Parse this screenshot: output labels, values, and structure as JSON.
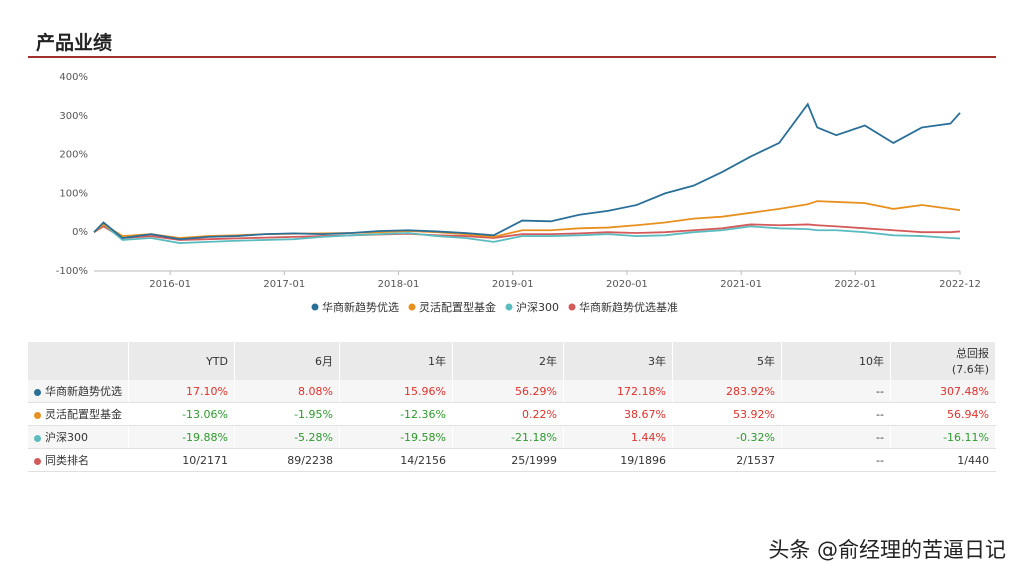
{
  "header": {
    "title": "产品业绩"
  },
  "chart_data": {
    "type": "line",
    "x": [
      "2015-05",
      "2015-06",
      "2015-08",
      "2015-11",
      "2016-02",
      "2016-05",
      "2016-08",
      "2016-11",
      "2017-02",
      "2017-05",
      "2017-08",
      "2017-11",
      "2018-02",
      "2018-05",
      "2018-08",
      "2018-11",
      "2019-02",
      "2019-05",
      "2019-08",
      "2019-11",
      "2020-02",
      "2020-05",
      "2020-08",
      "2020-11",
      "2021-02",
      "2021-05",
      "2021-08",
      "2021-09",
      "2021-11",
      "2022-02",
      "2022-05",
      "2022-08",
      "2022-11",
      "2022-12"
    ],
    "xlim": [
      "2015-05",
      "2022-12"
    ],
    "xticks": [
      "2016-01",
      "2017-01",
      "2018-01",
      "2019-01",
      "2020-01",
      "2021-01",
      "2022-01",
      "2022-12"
    ],
    "ylim": [
      -100,
      400
    ],
    "yticks": [
      {
        "value": -100,
        "label": "-100%"
      },
      {
        "value": 0,
        "label": "0%"
      },
      {
        "value": 100,
        "label": "100%"
      },
      {
        "value": 200,
        "label": "200%"
      },
      {
        "value": 300,
        "label": "300%"
      },
      {
        "value": 400,
        "label": "400%"
      }
    ],
    "series": [
      {
        "name": "华商新趋势优选",
        "color": "#2a6f97",
        "values": [
          0,
          25,
          -15,
          -5,
          -18,
          -12,
          -10,
          -5,
          -3,
          -5,
          -2,
          3,
          5,
          2,
          -2,
          -8,
          30,
          28,
          45,
          55,
          70,
          100,
          120,
          155,
          195,
          230,
          330,
          270,
          250,
          275,
          230,
          270,
          280,
          307.48
        ]
      },
      {
        "name": "灵活配置型基金",
        "color": "#e8901f",
        "values": [
          0,
          20,
          -10,
          -5,
          -15,
          -10,
          -8,
          -5,
          -4,
          -3,
          -2,
          0,
          3,
          0,
          -5,
          -12,
          5,
          5,
          10,
          12,
          18,
          25,
          35,
          40,
          50,
          60,
          72,
          80,
          78,
          75,
          60,
          70,
          60,
          56.94
        ]
      },
      {
        "name": "沪深300",
        "color": "#5bbcc0",
        "values": [
          0,
          20,
          -20,
          -15,
          -28,
          -25,
          -22,
          -20,
          -18,
          -12,
          -8,
          -5,
          -2,
          -10,
          -15,
          -25,
          -10,
          -10,
          -8,
          -5,
          -10,
          -8,
          0,
          5,
          15,
          10,
          8,
          5,
          5,
          0,
          -8,
          -10,
          -15,
          -16.11
        ]
      },
      {
        "name": "华商新趋势优选基准",
        "color": "#d45a5a",
        "values": [
          0,
          15,
          -15,
          -10,
          -20,
          -18,
          -16,
          -14,
          -12,
          -10,
          -8,
          -6,
          -4,
          -8,
          -10,
          -15,
          -5,
          -5,
          -3,
          0,
          -2,
          0,
          5,
          10,
          20,
          18,
          20,
          18,
          15,
          10,
          5,
          0,
          0,
          2
        ]
      }
    ]
  },
  "table": {
    "columns": [
      "YTD",
      "6月",
      "1年",
      "2年",
      "3年",
      "5年",
      "10年",
      [
        "总回报",
        "(7.6年)"
      ]
    ],
    "rows": [
      {
        "label": "华商新趋势优选",
        "color": "#2a6f97",
        "cells": [
          "17.10%",
          "8.08%",
          "15.96%",
          "56.29%",
          "172.18%",
          "283.92%",
          "--",
          "307.48%"
        ]
      },
      {
        "label": "灵活配置型基金",
        "color": "#e8901f",
        "cells": [
          "-13.06%",
          "-1.95%",
          "-12.36%",
          "0.22%",
          "38.67%",
          "53.92%",
          "--",
          "56.94%"
        ]
      },
      {
        "label": "沪深300",
        "color": "#5bbcc0",
        "cells": [
          "-19.88%",
          "-5.28%",
          "-19.58%",
          "-21.18%",
          "1.44%",
          "-0.32%",
          "--",
          "-16.11%"
        ]
      },
      {
        "label": "同类排名",
        "color": "#d45a5a",
        "cells": [
          "10/2171",
          "89/2238",
          "14/2156",
          "25/1999",
          "19/1896",
          "2/1537",
          "--",
          "1/440"
        ]
      }
    ]
  },
  "watermark": "头条 @俞经理的苦逼日记"
}
